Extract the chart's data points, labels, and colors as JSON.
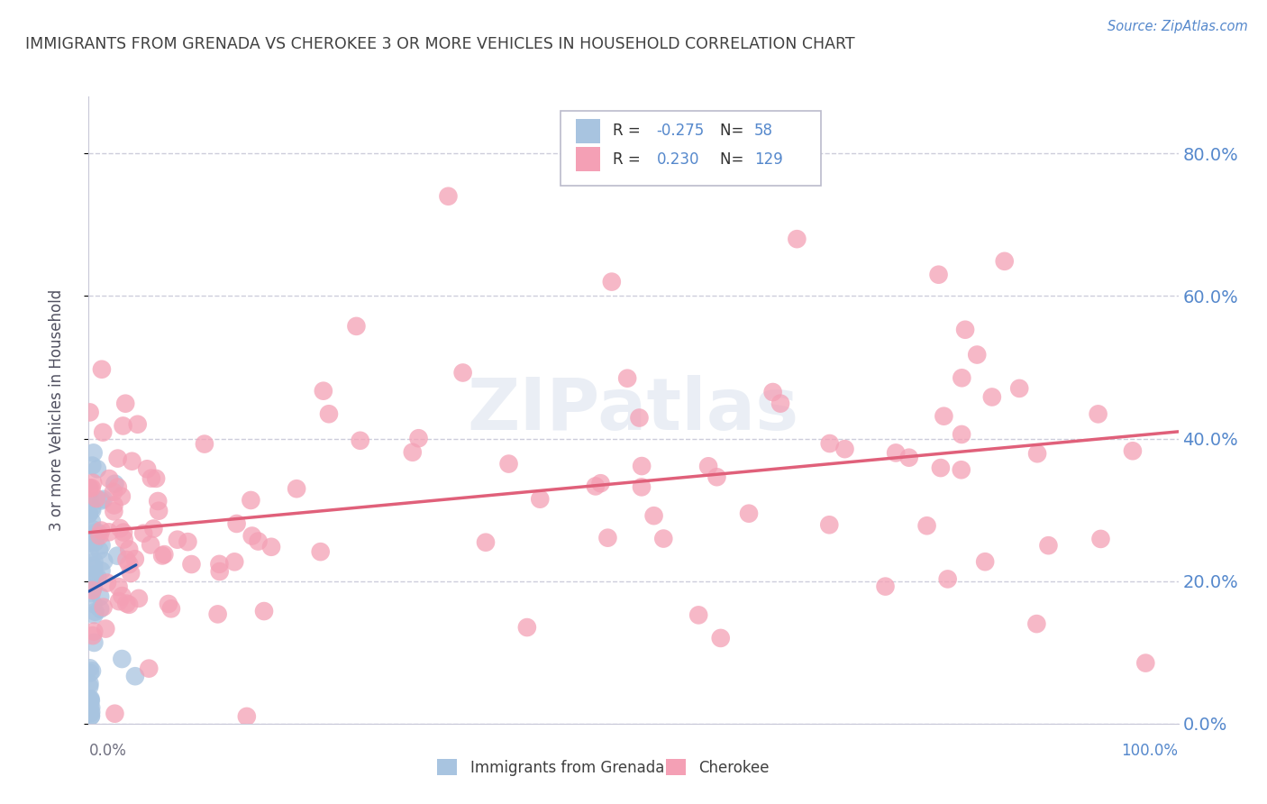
{
  "title": "IMMIGRANTS FROM GRENADA VS CHEROKEE 3 OR MORE VEHICLES IN HOUSEHOLD CORRELATION CHART",
  "source": "Source: ZipAtlas.com",
  "ylabel": "3 or more Vehicles in Household",
  "watermark": "ZIPatlas",
  "legend_labels": [
    "Immigrants from Grenada",
    "Cherokee"
  ],
  "blue_R": "-0.275",
  "blue_N": "58",
  "pink_R": "0.230",
  "pink_N": "129",
  "blue_color": "#a8c4e0",
  "pink_color": "#f4a0b5",
  "blue_line_color": "#2255aa",
  "pink_line_color": "#e0607a",
  "background_color": "#ffffff",
  "grid_color": "#c8c8d8",
  "title_color": "#404040",
  "right_axis_color": "#5588cc",
  "source_color": "#5588cc",
  "ytick_labels": [
    "0.0%",
    "20.0%",
    "40.0%",
    "60.0%",
    "80.0%"
  ],
  "ytick_values": [
    0.0,
    0.2,
    0.4,
    0.6,
    0.8
  ],
  "xlim": [
    0.0,
    1.0
  ],
  "ylim": [
    0.0,
    0.88
  ],
  "blue_seed": 12,
  "pink_seed": 7
}
